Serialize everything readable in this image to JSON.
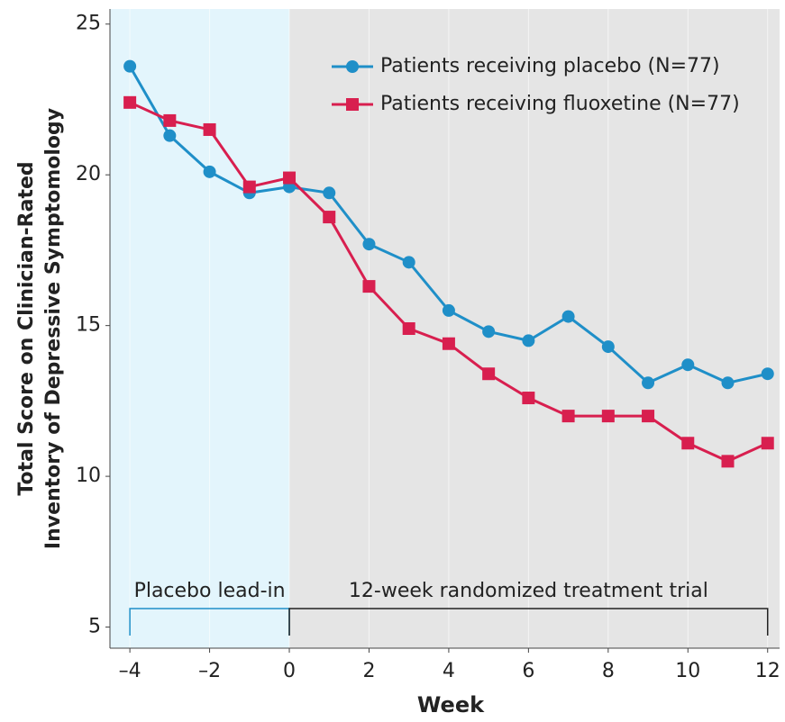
{
  "chart_data": {
    "type": "line",
    "ylabel": [
      "Total Score on Clinician-Rated",
      "Inventory of Depressive Symptomology"
    ],
    "xlabel": "Week",
    "x": [
      -4,
      -3,
      -2,
      -1,
      0,
      1,
      2,
      3,
      4,
      5,
      6,
      7,
      8,
      9,
      10,
      11,
      12
    ],
    "series": [
      {
        "name": "Patients receiving placebo (N=77)",
        "color": "#1f8fc8",
        "marker": "circle",
        "values": [
          23.6,
          21.3,
          20.1,
          19.4,
          19.6,
          19.4,
          17.7,
          17.1,
          15.5,
          14.8,
          14.5,
          15.3,
          14.3,
          13.1,
          13.7,
          13.1,
          13.4
        ]
      },
      {
        "name": "Patients receiving fluoxetine (N=77)",
        "color": "#d81f4f",
        "marker": "square",
        "values": [
          22.4,
          21.8,
          21.5,
          19.6,
          19.9,
          18.6,
          16.3,
          14.9,
          14.4,
          13.4,
          12.6,
          12.0,
          12.0,
          12.0,
          11.1,
          10.5,
          11.1
        ]
      }
    ],
    "phases": [
      {
        "label": "Placebo lead-in",
        "start": -4,
        "end": 0,
        "color": "#e3f5fc",
        "text_color": "#1f8fc8"
      },
      {
        "label": "12-week randomized treatment trial",
        "start": 0,
        "end": 12,
        "color": "#e5e5e5",
        "text_color": "#222"
      }
    ],
    "xlim": [
      -4.5,
      12.3
    ],
    "ylim": [
      4.3,
      25.5
    ],
    "xticks": [
      {
        "value": -4,
        "label": "–4"
      },
      {
        "value": -2,
        "label": "–2"
      },
      0,
      2,
      4,
      6,
      8,
      10,
      12
    ],
    "yticks": [
      5,
      10,
      15,
      20,
      25
    ],
    "grid": true,
    "legend": "top-right"
  }
}
